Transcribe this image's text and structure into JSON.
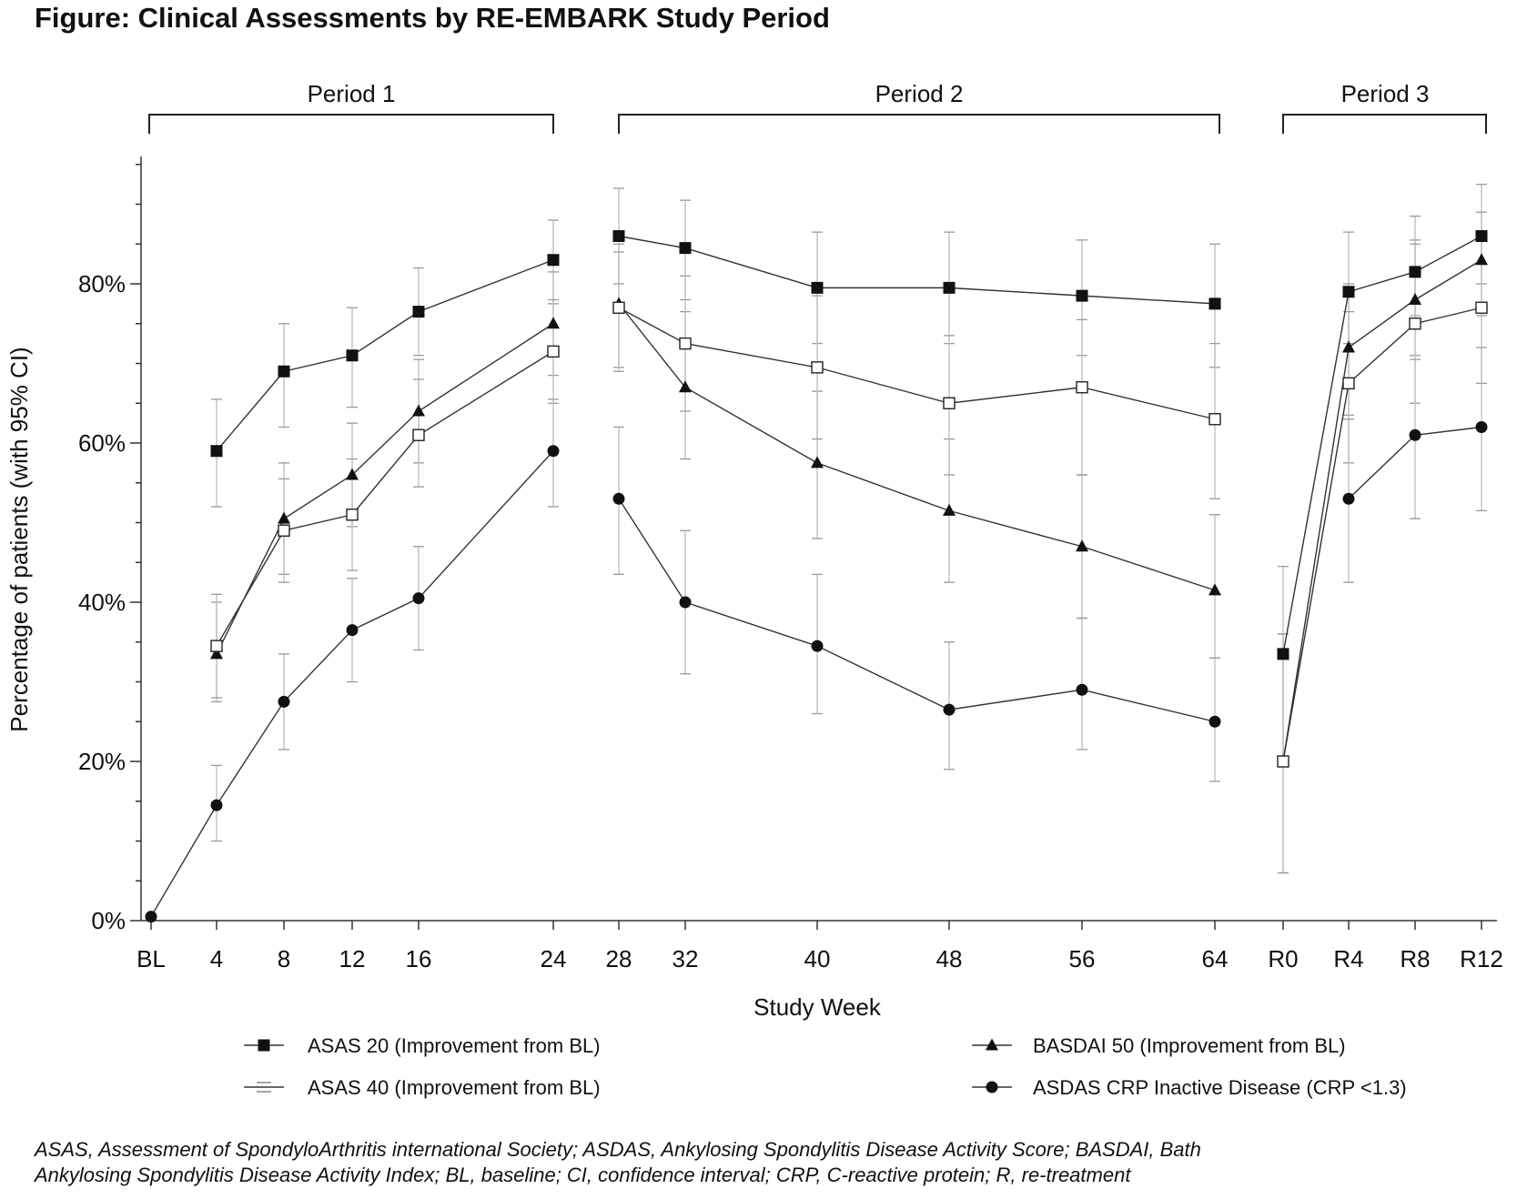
{
  "figure_title": "Figure: Clinical Assessments by RE-EMBARK Study Period",
  "periods": [
    "Period 1",
    "Period 2",
    "Period 3"
  ],
  "footnote": [
    "ASAS, Assessment of SpondyloArthritis international Society; ASDAS, Ankylosing Spondylitis Disease Activity Score; BASDAI, Bath",
    "Ankylosing Spondylitis Disease Activity Index; BL, baseline; CI, confidence interval; CRP, C-reactive protein; R, re-treatment"
  ],
  "chart_data": {
    "type": "line",
    "title": "",
    "xlabel": "Study Week",
    "ylabel": "Percentage of patients (with 95% CI)",
    "ylim": [
      0,
      100
    ],
    "yticks": [
      "0%",
      "20%",
      "40%",
      "60%",
      "80%"
    ],
    "categories": [
      "BL",
      "4",
      "8",
      "12",
      "16",
      "24",
      "28",
      "32",
      "40",
      "48",
      "56",
      "64",
      "R0",
      "R4",
      "R8",
      "R12"
    ],
    "legend_placement": "bottom",
    "series": [
      {
        "name": "ASAS 20 (Improvement from BL)",
        "marker": "filled-square",
        "values": [
          null,
          59,
          69,
          71,
          76.5,
          83,
          86,
          84.5,
          79.5,
          79.5,
          78.5,
          77.5,
          33.5,
          79,
          81.5,
          86
        ],
        "ci_low": [
          null,
          52,
          62,
          64.5,
          71,
          77.5,
          80,
          78,
          72.5,
          72.5,
          71,
          69.5,
          20,
          72.5,
          76,
          80
        ],
        "ci_high": [
          null,
          65.5,
          75,
          77,
          82,
          88,
          92,
          90.5,
          86.5,
          86.5,
          85.5,
          85,
          44.5,
          86.5,
          88.5,
          92.5
        ]
      },
      {
        "name": "BASDAI 50 (Improvement from BL)",
        "marker": "filled-triangle",
        "values": [
          null,
          33.5,
          50.5,
          56,
          64,
          75,
          77.5,
          67,
          57.5,
          51.5,
          47,
          41.5,
          20,
          72,
          78,
          83
        ],
        "ci_low": [
          null,
          27.5,
          43.5,
          49.5,
          57.5,
          68.5,
          69.5,
          58,
          48,
          42.5,
          38,
          33,
          6,
          63.5,
          71,
          76
        ],
        "ci_high": [
          null,
          40,
          57.5,
          62.5,
          70.5,
          81.5,
          84,
          76.5,
          66.5,
          60.5,
          56,
          51,
          36,
          80,
          85.5,
          89
        ]
      },
      {
        "name": "ASAS 40 (Improvement from BL)",
        "marker": "open-square",
        "values": [
          null,
          34.5,
          49,
          51,
          61,
          71.5,
          77,
          72.5,
          69.5,
          65,
          67,
          63,
          20,
          67.5,
          75,
          77
        ],
        "ci_low": [
          null,
          28,
          42.5,
          44,
          54.5,
          65,
          69,
          64,
          60.5,
          56,
          56,
          53,
          6,
          57.5,
          65,
          67.5
        ],
        "ci_high": [
          null,
          41,
          55.5,
          58,
          68,
          78,
          85,
          81,
          78.5,
          73.5,
          75.5,
          72.5,
          36,
          76.5,
          85,
          86.5
        ]
      },
      {
        "name": "ASDAS CRP Inactive Disease (CRP <1.3)",
        "marker": "filled-circle",
        "values": [
          0.5,
          14.5,
          27.5,
          36.5,
          40.5,
          59,
          53,
          40,
          34.5,
          26.5,
          29,
          25,
          null,
          53,
          61,
          62
        ],
        "ci_low": [
          null,
          10,
          21.5,
          30,
          34,
          52,
          43.5,
          31,
          26,
          19,
          21.5,
          17.5,
          null,
          42.5,
          50.5,
          51.5
        ],
        "ci_high": [
          null,
          19.5,
          33.5,
          43,
          47,
          65.5,
          62,
          49,
          43.5,
          35,
          38,
          33,
          null,
          63,
          70.5,
          72
        ]
      }
    ]
  }
}
